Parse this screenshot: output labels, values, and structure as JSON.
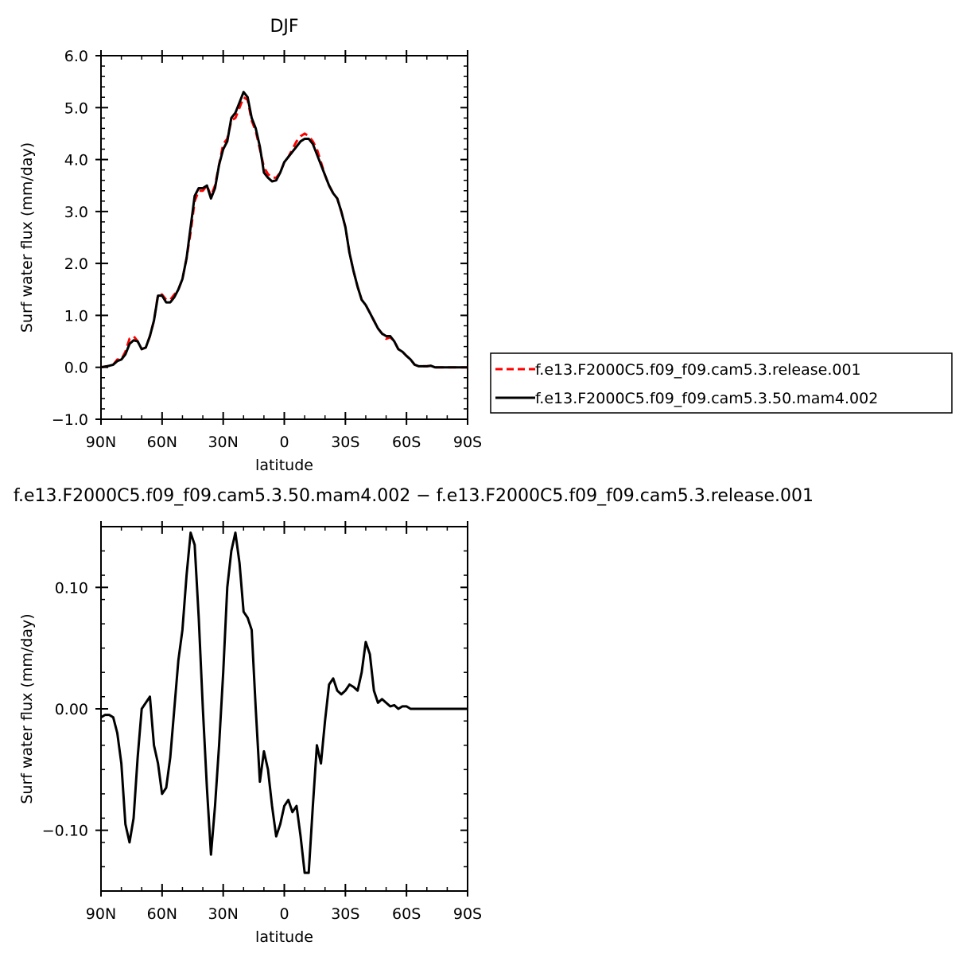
{
  "chart_data": [
    {
      "type": "line",
      "title": "DJF",
      "xlabel": "latitude",
      "ylabel": "Surf water flux (mm/day)",
      "xlim": [
        90,
        -90
      ],
      "ylim": [
        -1.0,
        6.0
      ],
      "x_ticks": [
        90,
        60,
        30,
        0,
        -30,
        -60,
        -90
      ],
      "x_tick_labels": [
        "90N",
        "60N",
        "30N",
        "0",
        "30S",
        "60S",
        "90S"
      ],
      "y_ticks": [
        -1.0,
        0.0,
        1.0,
        2.0,
        3.0,
        4.0,
        5.0,
        6.0
      ],
      "y_tick_labels": [
        "−1.0",
        "0.0",
        "1.0",
        "2.0",
        "3.0",
        "4.0",
        "5.0",
        "6.0"
      ],
      "grid": false,
      "legend_position": "right",
      "series": [
        {
          "name": "f.e13.F2000C5.f09_f09.cam5.3.release.001",
          "color": "#ff0000",
          "dash": "dashed",
          "x": [
            90,
            87,
            84,
            82,
            80,
            78,
            76,
            74,
            72,
            70,
            68,
            66,
            64,
            62,
            60,
            58,
            56,
            54,
            52,
            50,
            48,
            46,
            44,
            42,
            40,
            38,
            36,
            34,
            32,
            30,
            28,
            26,
            24,
            22,
            20,
            18,
            16,
            14,
            12,
            10,
            8,
            6,
            4,
            2,
            0,
            -2,
            -4,
            -6,
            -8,
            -10,
            -12,
            -14,
            -16,
            -18,
            -20,
            -22,
            -24,
            -26,
            -28,
            -30,
            -32,
            -34,
            -36,
            -38,
            -40,
            -42,
            -44,
            -46,
            -48,
            -50,
            -52,
            -54,
            -56,
            -58,
            -60,
            -62,
            -64,
            -66,
            -68,
            -70,
            -72,
            -74,
            -76,
            -78,
            -80,
            -82,
            -84,
            -86,
            -88,
            -90
          ],
          "values": [
            0.0,
            0.02,
            0.05,
            0.15,
            0.15,
            0.3,
            0.55,
            0.6,
            0.5,
            0.35,
            0.38,
            0.6,
            0.9,
            1.4,
            1.4,
            1.3,
            1.3,
            1.4,
            1.5,
            1.7,
            2.1,
            2.6,
            3.2,
            3.4,
            3.4,
            3.5,
            3.3,
            3.5,
            3.9,
            4.3,
            4.4,
            4.75,
            4.8,
            5.0,
            5.2,
            5.15,
            4.75,
            4.55,
            4.2,
            3.85,
            3.72,
            3.65,
            3.65,
            3.75,
            3.95,
            4.05,
            4.2,
            4.35,
            4.45,
            4.5,
            4.45,
            4.35,
            4.2,
            3.95,
            3.7,
            3.5,
            3.35,
            3.25,
            3.0,
            2.7,
            2.2,
            1.85,
            1.55,
            1.3,
            1.2,
            1.05,
            0.9,
            0.75,
            0.65,
            0.55,
            0.58,
            0.5,
            0.35,
            0.3,
            0.22,
            0.15,
            0.05,
            0.02,
            0.02,
            0.02,
            0.03,
            0.0,
            0.0,
            0.0,
            0.0,
            0.0,
            0.0,
            0.0,
            0.0,
            0.0
          ]
        },
        {
          "name": "f.e13.F2000C5.f09_f09.cam5.3.50.mam4.002",
          "color": "#000000",
          "dash": "solid",
          "x": [
            90,
            87,
            84,
            82,
            80,
            78,
            76,
            74,
            72,
            70,
            68,
            66,
            64,
            62,
            60,
            58,
            56,
            54,
            52,
            50,
            48,
            46,
            44,
            42,
            40,
            38,
            36,
            34,
            32,
            30,
            28,
            26,
            24,
            22,
            20,
            18,
            16,
            14,
            12,
            10,
            8,
            6,
            4,
            2,
            0,
            -2,
            -4,
            -6,
            -8,
            -10,
            -12,
            -14,
            -16,
            -18,
            -20,
            -22,
            -24,
            -26,
            -28,
            -30,
            -32,
            -34,
            -36,
            -38,
            -40,
            -42,
            -44,
            -46,
            -48,
            -50,
            -52,
            -54,
            -56,
            -58,
            -60,
            -62,
            -64,
            -66,
            -68,
            -70,
            -72,
            -74,
            -76,
            -78,
            -80,
            -82,
            -84,
            -86,
            -88,
            -90
          ],
          "values": [
            0.0,
            0.02,
            0.05,
            0.12,
            0.15,
            0.25,
            0.45,
            0.52,
            0.5,
            0.35,
            0.38,
            0.6,
            0.9,
            1.38,
            1.38,
            1.25,
            1.25,
            1.35,
            1.5,
            1.7,
            2.1,
            2.7,
            3.3,
            3.45,
            3.45,
            3.5,
            3.25,
            3.45,
            3.9,
            4.2,
            4.35,
            4.8,
            4.9,
            5.1,
            5.3,
            5.2,
            4.8,
            4.6,
            4.25,
            3.75,
            3.65,
            3.58,
            3.6,
            3.75,
            3.95,
            4.05,
            4.15,
            4.25,
            4.35,
            4.4,
            4.4,
            4.3,
            4.1,
            3.9,
            3.7,
            3.5,
            3.35,
            3.25,
            3.0,
            2.7,
            2.2,
            1.85,
            1.55,
            1.3,
            1.2,
            1.05,
            0.9,
            0.75,
            0.65,
            0.6,
            0.6,
            0.5,
            0.35,
            0.3,
            0.22,
            0.15,
            0.05,
            0.02,
            0.02,
            0.02,
            0.03,
            0.0,
            0.0,
            0.0,
            0.0,
            0.0,
            0.0,
            0.0,
            0.0,
            0.0
          ]
        }
      ]
    },
    {
      "type": "line",
      "title": "f.e13.F2000C5.f09_f09.cam5.3.50.mam4.002 − f.e13.F2000C5.f09_f09.cam5.3.release.001",
      "xlabel": "latitude",
      "ylabel": "Surf water flux (mm/day)",
      "xlim": [
        90,
        -90
      ],
      "ylim": [
        -0.15,
        0.15
      ],
      "x_ticks": [
        90,
        60,
        30,
        0,
        -30,
        -60,
        -90
      ],
      "x_tick_labels": [
        "90N",
        "60N",
        "30N",
        "0",
        "30S",
        "60S",
        "90S"
      ],
      "y_ticks": [
        -0.1,
        0.0,
        0.1
      ],
      "y_tick_labels": [
        "−0.10",
        "0.00",
        "0.10"
      ],
      "grid": false,
      "series": [
        {
          "color": "#000000",
          "dash": "solid",
          "x": [
            90,
            88,
            86,
            84,
            82,
            80,
            78,
            76,
            74,
            72,
            70,
            68,
            66,
            64,
            62,
            60,
            58,
            56,
            54,
            52,
            50,
            48,
            46,
            44,
            42,
            40,
            38,
            36,
            34,
            32,
            30,
            28,
            26,
            24,
            22,
            20,
            18,
            16,
            14,
            12,
            10,
            8,
            6,
            4,
            2,
            0,
            -2,
            -4,
            -6,
            -8,
            -10,
            -12,
            -14,
            -16,
            -18,
            -20,
            -22,
            -24,
            -26,
            -28,
            -30,
            -32,
            -34,
            -36,
            -38,
            -40,
            -42,
            -44,
            -46,
            -48,
            -50,
            -52,
            -54,
            -56,
            -58,
            -60,
            -62,
            -64,
            -66,
            -68,
            -70,
            -72,
            -74,
            -76,
            -78,
            -80,
            -82,
            -84,
            -86,
            -88,
            -90
          ],
          "values": [
            -0.007,
            -0.005,
            -0.005,
            -0.007,
            -0.02,
            -0.045,
            -0.095,
            -0.11,
            -0.09,
            -0.04,
            0.0,
            0.005,
            0.01,
            -0.03,
            -0.045,
            -0.07,
            -0.065,
            -0.04,
            0.0,
            0.04,
            0.065,
            0.11,
            0.145,
            0.135,
            0.075,
            0.0,
            -0.065,
            -0.12,
            -0.08,
            -0.03,
            0.03,
            0.1,
            0.13,
            0.145,
            0.12,
            0.08,
            0.075,
            0.065,
            0.0,
            -0.06,
            -0.035,
            -0.05,
            -0.08,
            -0.105,
            -0.095,
            -0.08,
            -0.075,
            -0.085,
            -0.08,
            -0.105,
            -0.135,
            -0.135,
            -0.08,
            -0.03,
            -0.045,
            -0.01,
            0.02,
            0.025,
            0.015,
            0.012,
            0.015,
            0.02,
            0.018,
            0.015,
            0.03,
            0.055,
            0.045,
            0.015,
            0.005,
            0.008,
            0.005,
            0.002,
            0.003,
            0.0,
            0.002,
            0.002,
            0.0,
            0.0,
            0.0,
            0.0,
            0.0,
            0.0,
            0.0,
            0.0,
            0.0,
            0.0,
            0.0,
            0.0,
            0.0,
            0.0,
            0.0
          ]
        }
      ]
    }
  ]
}
